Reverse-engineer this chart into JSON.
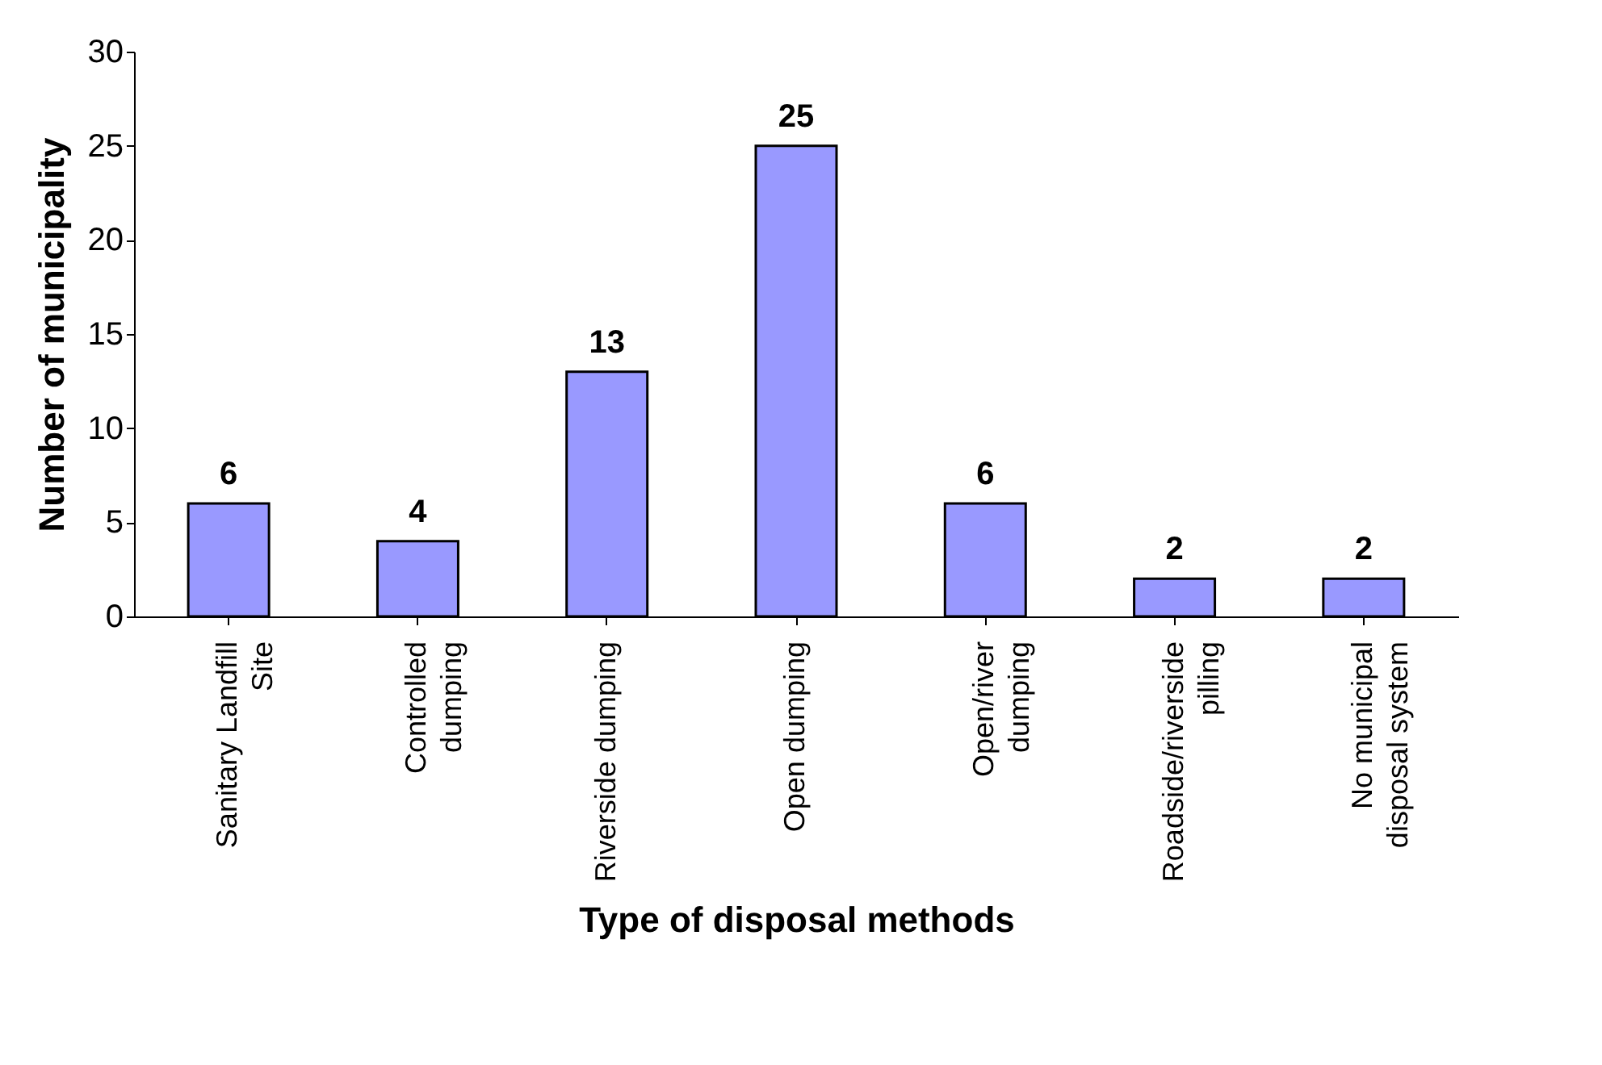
{
  "chart_data": {
    "type": "bar",
    "xlabel": "Type of disposal methods",
    "ylabel": "Number of municipality",
    "categories": [
      "Sanitary Landfill\nSite",
      "Controlled\ndumping",
      "Riverside dumping",
      "Open dumping",
      "Open/river\ndumping",
      "Roadside/riverside\npilling",
      "No municipal\ndisposal system"
    ],
    "values": [
      6,
      4,
      13,
      25,
      6,
      2,
      2
    ],
    "color": "#9999ff",
    "ylim": [
      0,
      30
    ],
    "yticks": [
      0,
      5,
      10,
      15,
      20,
      25,
      30
    ],
    "grid": false,
    "data_labels": true
  }
}
